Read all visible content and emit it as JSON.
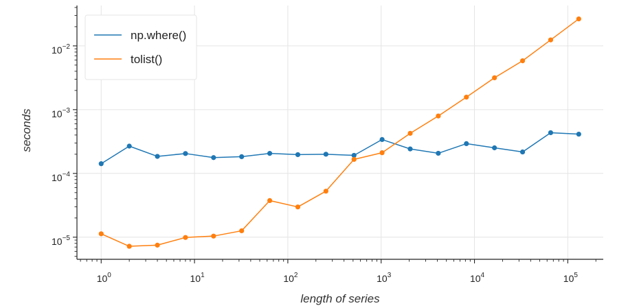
{
  "chart_data": {
    "type": "line",
    "xscale": "log",
    "yscale": "log",
    "xlabel": "length of series",
    "ylabel": "seconds",
    "xlim": [
      0.55,
      240000
    ],
    "ylim": [
      4.5e-06,
      0.043
    ],
    "xticks": [
      {
        "value": 1,
        "base": "10",
        "exp": "0"
      },
      {
        "value": 10,
        "base": "10",
        "exp": "1"
      },
      {
        "value": 100,
        "base": "10",
        "exp": "2"
      },
      {
        "value": 1000,
        "base": "10",
        "exp": "3"
      },
      {
        "value": 10000,
        "base": "10",
        "exp": "4"
      },
      {
        "value": 100000,
        "base": "10",
        "exp": "5"
      }
    ],
    "yticks": [
      {
        "value": 1e-05,
        "base": "10",
        "exp": "−5"
      },
      {
        "value": 0.0001,
        "base": "10",
        "exp": "−4"
      },
      {
        "value": 0.001,
        "base": "10",
        "exp": "−3"
      },
      {
        "value": 0.01,
        "base": "10",
        "exp": "−2"
      }
    ],
    "grid": true,
    "legend_position": "top-left",
    "x": [
      1,
      2,
      4,
      8,
      16,
      32,
      64,
      128,
      256,
      512,
      1024,
      2048,
      4096,
      8192,
      16384,
      32768,
      65536,
      131072
    ],
    "series": [
      {
        "name": "np.where()",
        "color": "#1f77b4",
        "values": [
          0.000142,
          0.000268,
          0.000185,
          0.000205,
          0.000177,
          0.000183,
          0.000206,
          0.000197,
          0.0002,
          0.000192,
          0.00034,
          0.000242,
          0.000207,
          0.000293,
          0.000252,
          0.000217,
          0.000435,
          0.000413
        ]
      },
      {
        "name": "tolist()",
        "color": "#ff7f0e",
        "values": [
          1.13e-05,
          7.2e-06,
          7.5e-06,
          9.9e-06,
          1.04e-05,
          1.26e-05,
          3.75e-05,
          2.98e-05,
          5.27e-05,
          0.000166,
          0.000211,
          0.000425,
          0.000795,
          0.00157,
          0.00316,
          0.00584,
          0.0124,
          0.0265
        ]
      }
    ]
  }
}
